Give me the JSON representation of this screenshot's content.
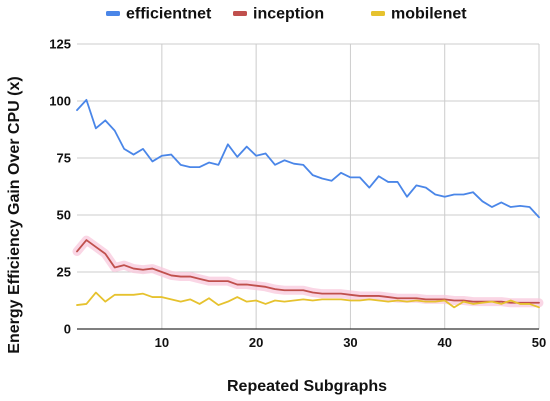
{
  "chart_data": {
    "type": "line",
    "title": "",
    "xlabel": "Repeated Subgraphs",
    "ylabel": "Energy Efficiency Gain Over CPU (x)",
    "xlim": [
      1,
      50
    ],
    "ylim": [
      0,
      125
    ],
    "xticks": [
      10,
      20,
      30,
      40,
      50
    ],
    "yticks": [
      0,
      25,
      50,
      75,
      100,
      125
    ],
    "grid": true,
    "legend_position": "top",
    "x": [
      1,
      2,
      3,
      4,
      5,
      6,
      7,
      8,
      9,
      10,
      11,
      12,
      13,
      14,
      15,
      16,
      17,
      18,
      19,
      20,
      21,
      22,
      23,
      24,
      25,
      26,
      27,
      28,
      29,
      30,
      31,
      32,
      33,
      34,
      35,
      36,
      37,
      38,
      39,
      40,
      41,
      42,
      43,
      44,
      45,
      46,
      47,
      48,
      49,
      50
    ],
    "series": [
      {
        "name": "efficientnet",
        "color": "#4a86e8",
        "values": [
          96,
          100.5,
          88,
          91.5,
          87,
          79,
          76.5,
          79,
          73.5,
          76,
          76.5,
          72,
          71,
          71,
          73,
          72,
          81,
          75.5,
          80,
          76,
          77,
          72,
          74,
          72.5,
          72,
          67.5,
          66,
          65,
          68.5,
          66.5,
          66.5,
          62,
          67,
          64.5,
          64.5,
          58,
          63,
          62,
          59,
          58,
          59,
          59,
          60,
          56,
          53.5,
          55.5,
          53.5,
          54,
          53.5,
          49
        ]
      },
      {
        "name": "inception",
        "color": "#c0504d",
        "band_color": "#f8c8dc",
        "values": [
          34,
          39,
          36,
          33,
          27,
          28,
          26.5,
          26,
          26.5,
          25,
          23.5,
          23,
          23,
          22,
          21,
          21,
          21,
          19.5,
          19.5,
          19,
          18.5,
          17.5,
          17,
          17,
          17,
          16,
          15.5,
          15.5,
          15.5,
          15,
          14.5,
          14.5,
          14.5,
          14,
          13.5,
          13.5,
          13.5,
          13,
          13,
          13,
          12.5,
          12.5,
          12,
          12,
          12,
          12,
          11.5,
          11.5,
          11.5,
          11.5
        ]
      },
      {
        "name": "mobilenet",
        "color": "#e6c22e",
        "values": [
          10.5,
          11,
          16,
          12,
          15,
          15,
          15,
          15.5,
          14,
          14,
          13,
          12,
          13,
          11,
          13.5,
          10.5,
          12,
          14,
          12,
          12.5,
          11,
          12.5,
          12,
          12.5,
          13,
          12.5,
          13,
          13,
          13,
          12.5,
          12.5,
          13,
          12.5,
          12,
          12.5,
          12,
          12.5,
          12,
          12,
          12.5,
          9.5,
          12,
          11,
          11.5,
          12,
          11,
          12.5,
          11,
          11,
          9.5
        ]
      }
    ]
  }
}
